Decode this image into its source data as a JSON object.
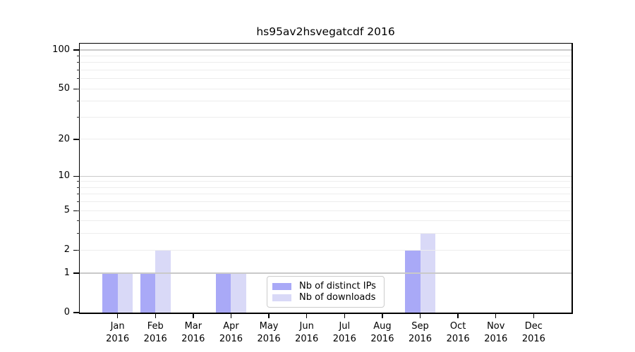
{
  "chart_data": {
    "type": "bar",
    "title": "hs95av2hsvegatcdf 2016",
    "categories": [
      "Jan 2016",
      "Feb 2016",
      "Mar 2016",
      "Apr 2016",
      "May 2016",
      "Jun 2016",
      "Jul 2016",
      "Aug 2016",
      "Sep 2016",
      "Oct 2016",
      "Nov 2016",
      "Dec 2016"
    ],
    "x_ticks": [
      {
        "month": "Jan",
        "year": "2016"
      },
      {
        "month": "Feb",
        "year": "2016"
      },
      {
        "month": "Mar",
        "year": "2016"
      },
      {
        "month": "Apr",
        "year": "2016"
      },
      {
        "month": "May",
        "year": "2016"
      },
      {
        "month": "Jun",
        "year": "2016"
      },
      {
        "month": "Jul",
        "year": "2016"
      },
      {
        "month": "Aug",
        "year": "2016"
      },
      {
        "month": "Sep",
        "year": "2016"
      },
      {
        "month": "Oct",
        "year": "2016"
      },
      {
        "month": "Nov",
        "year": "2016"
      },
      {
        "month": "Dec",
        "year": "2016"
      }
    ],
    "series": [
      {
        "name": "Nb of distinct IPs",
        "color": "#a9a9f7",
        "values": [
          1,
          1,
          0,
          1,
          0,
          0,
          0,
          0,
          2,
          0,
          0,
          0
        ]
      },
      {
        "name": "Nb of downloads",
        "color": "#d9d9f7",
        "values": [
          1,
          2,
          0,
          1,
          0,
          0,
          0,
          0,
          3,
          0,
          0,
          0
        ]
      }
    ],
    "yscale": "log1p",
    "ylim": [
      0,
      112
    ],
    "xlim": [
      -1,
      12
    ],
    "y_tick_values": [
      0,
      1,
      2,
      5,
      10,
      20,
      50,
      100
    ],
    "y_tick_labels": [
      "0",
      "1",
      "2",
      "5",
      "10",
      "20",
      "50",
      "100"
    ],
    "y_major_gridlines": [
      1,
      10,
      100
    ],
    "y_minor_gridlines": [
      2,
      3,
      4,
      5,
      6,
      7,
      8,
      9,
      20,
      30,
      40,
      50,
      60,
      70,
      80,
      90
    ],
    "grid": "both",
    "legend": {
      "location": "lower center"
    }
  },
  "colors": {
    "bar_distinct_ips": "#a9a9f7",
    "bar_downloads": "#d9d9f7",
    "grid_major": "#c9c9c9",
    "grid_minor": "#ededed",
    "axis": "#000000",
    "legend_border": "#cccccc",
    "background": "#ffffff"
  }
}
